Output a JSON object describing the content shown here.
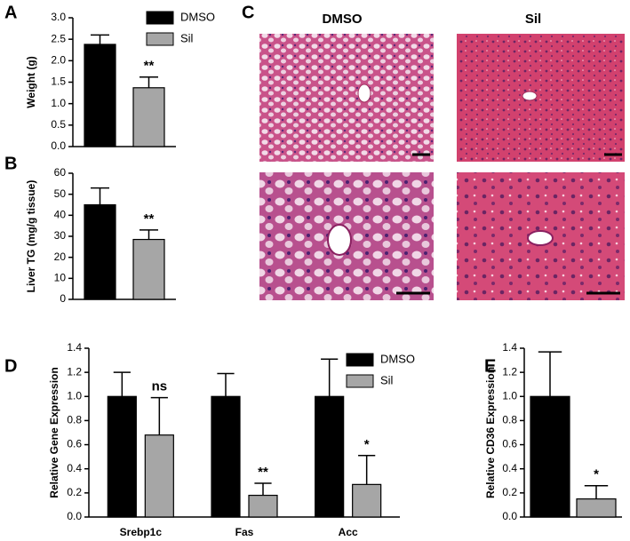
{
  "chart_data": [
    {
      "type": "bar",
      "panel": "A",
      "y_label": "Weight (g)",
      "ylim": [
        0,
        3
      ],
      "yticks": [
        {
          "value": 0,
          "label": "0.0"
        },
        {
          "value": 0.5,
          "label": "0.5"
        },
        {
          "value": 1,
          "label": "1.0"
        },
        {
          "value": 1.5,
          "label": "1.5"
        },
        {
          "value": 2,
          "label": "2.0"
        },
        {
          "value": 2.5,
          "label": "2.5"
        },
        {
          "value": 3,
          "label": "3.0"
        }
      ],
      "legend": true,
      "series": [
        {
          "name": "DMSO",
          "color": "#000000",
          "values": [
            2.38
          ],
          "errors": [
            0.22
          ]
        },
        {
          "name": "Sil",
          "color": "#a6a6a6",
          "values": [
            1.37
          ],
          "errors": [
            0.25
          ],
          "annotations": [
            "**"
          ]
        }
      ]
    },
    {
      "type": "bar",
      "panel": "B",
      "y_label": "Liver TG (mg/g tissue)",
      "ylim": [
        0,
        60
      ],
      "yticks": [
        0,
        10,
        20,
        30,
        40,
        50,
        60
      ],
      "legend": false,
      "series": [
        {
          "color": "#000000",
          "values": [
            45
          ],
          "errors": [
            8
          ]
        },
        {
          "color": "#a6a6a6",
          "values": [
            28.5
          ],
          "errors": [
            4.5
          ],
          "annotations": [
            "**"
          ]
        }
      ]
    },
    {
      "type": "bar",
      "panel": "D",
      "y_label": "Relative Gene Expression",
      "ylim": [
        0,
        1.4
      ],
      "yticks": [
        {
          "value": 0,
          "label": "0.0"
        },
        {
          "value": 0.2,
          "label": "0.2"
        },
        {
          "value": 0.4,
          "label": "0.4"
        },
        {
          "value": 0.6,
          "label": "0.6"
        },
        {
          "value": 0.8,
          "label": "0.8"
        },
        {
          "value": 1,
          "label": "1.0"
        },
        {
          "value": 1.2,
          "label": "1.2"
        },
        {
          "value": 1.4,
          "label": "1.4"
        }
      ],
      "legend": true,
      "categories": [
        "Srebp1c",
        "Fas",
        "Acc"
      ],
      "series": [
        {
          "name": "DMSO",
          "color": "#000000",
          "values": [
            1.0,
            1.0,
            1.0
          ],
          "errors": [
            0.2,
            0.19,
            0.31
          ]
        },
        {
          "name": "Sil",
          "color": "#a6a6a6",
          "values": [
            0.68,
            0.18,
            0.27
          ],
          "errors": [
            0.31,
            0.1,
            0.24
          ],
          "annotations": [
            "ns",
            "**",
            "*"
          ]
        }
      ]
    },
    {
      "type": "bar",
      "panel": "E",
      "y_label": "Relative CD36 Expression",
      "ylim": [
        0,
        1.4
      ],
      "yticks": [
        {
          "value": 0,
          "label": "0.0"
        },
        {
          "value": 0.2,
          "label": "0.2"
        },
        {
          "value": 0.4,
          "label": "0.4"
        },
        {
          "value": 0.6,
          "label": "0.6"
        },
        {
          "value": 0.8,
          "label": "0.8"
        },
        {
          "value": 1,
          "label": "1.0"
        },
        {
          "value": 1.2,
          "label": "1.2"
        },
        {
          "value": 1.4,
          "label": "1.4"
        }
      ],
      "legend": false,
      "series": [
        {
          "color": "#000000",
          "values": [
            1.0
          ],
          "errors": [
            0.37
          ]
        },
        {
          "color": "#a6a6a6",
          "values": [
            0.15
          ],
          "errors": [
            0.11
          ],
          "annotations": [
            "*"
          ]
        }
      ]
    }
  ],
  "images": {
    "panel": "C",
    "columns": [
      "DMSO",
      "Sil"
    ]
  }
}
